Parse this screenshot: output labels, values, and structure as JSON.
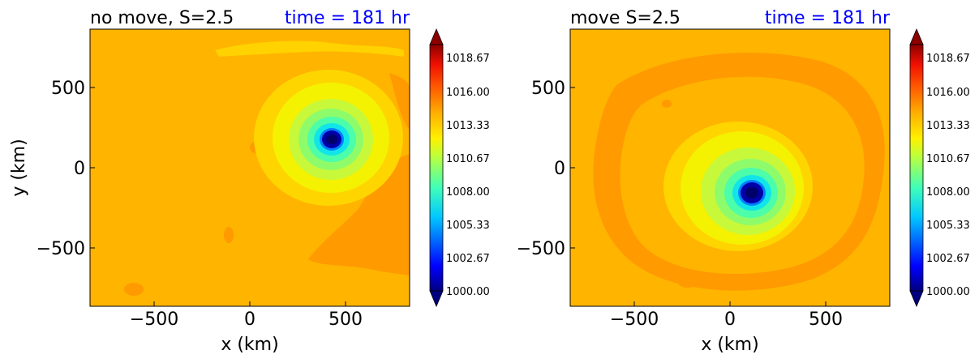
{
  "figure": {
    "type": "contour",
    "panel_count": 2
  },
  "chart_data": [
    {
      "type": "heatmap",
      "title": "no move, S=2.5",
      "time_label": "time = 181 hr",
      "xlabel": "x (km)",
      "ylabel": "y (km)",
      "xlim": [
        -850,
        850
      ],
      "ylim": [
        -850,
        850
      ],
      "xticks": [
        -500,
        0,
        500
      ],
      "yticks": [
        -500,
        0,
        500
      ],
      "xtick_labels": [
        "−500",
        "0",
        "500"
      ],
      "ytick_labels": [
        "−500",
        "0",
        "500"
      ],
      "pressure_min_center_km": [
        440,
        175
      ],
      "colorbar": {
        "ticks": [
          "1000.00",
          "1002.67",
          "1005.33",
          "1008.00",
          "1010.67",
          "1013.33",
          "1016.00",
          "1018.67"
        ],
        "range": [
          1000.0,
          1020.0
        ]
      }
    },
    {
      "type": "heatmap",
      "title": "move S=2.5",
      "time_label": "time = 181 hr",
      "xlabel": "x (km)",
      "ylabel": "",
      "xlim": [
        -850,
        850
      ],
      "ylim": [
        -850,
        850
      ],
      "xticks": [
        -500,
        0,
        500
      ],
      "yticks": [
        -500,
        0,
        500
      ],
      "xtick_labels": [
        "−500",
        "0",
        "500"
      ],
      "ytick_labels": [
        "−500",
        "0",
        "500"
      ],
      "pressure_min_center_km": [
        125,
        -155
      ],
      "colorbar": {
        "ticks": [
          "1000.00",
          "1002.67",
          "1005.33",
          "1008.00",
          "1010.67",
          "1013.33",
          "1016.00",
          "1018.67"
        ],
        "range": [
          1000.0,
          1020.0
        ]
      }
    }
  ],
  "colors": {
    "title": "#000000",
    "time": "#0000ff",
    "background_field": "#ffb400",
    "ring_outer": "#ffd500",
    "ring_yellow": "#f4f200",
    "ring_lime": "#c8f83a",
    "ring_green": "#8efc6a",
    "ring_teal": "#4cfdaa",
    "ring_cyan": "#12e5e8",
    "ring_blue": "#0080ff",
    "eye": "#0000a8",
    "eye_core": "#00006a",
    "dark_band": "#ff9a00"
  }
}
